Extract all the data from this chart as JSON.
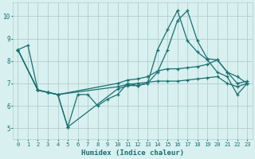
{
  "background_color": "#d8f0f0",
  "grid_color": "#b0cece",
  "line_color": "#1a7070",
  "xlabel": "Humidex (Indice chaleur)",
  "xlim": [
    -0.5,
    23.5
  ],
  "ylim": [
    4.5,
    10.6
  ],
  "yticks": [
    5,
    6,
    7,
    8,
    9,
    10
  ],
  "xticks": [
    0,
    1,
    2,
    3,
    4,
    5,
    6,
    7,
    8,
    9,
    10,
    11,
    12,
    13,
    14,
    15,
    16,
    17,
    18,
    19,
    20,
    21,
    22,
    23
  ],
  "lines": [
    {
      "x": [
        0,
        1,
        2,
        3,
        4,
        5,
        6,
        7,
        8,
        9,
        10,
        11,
        12,
        13,
        14,
        15,
        16,
        17,
        18,
        19,
        20,
        21,
        22,
        23
      ],
      "y": [
        8.5,
        8.7,
        6.7,
        6.6,
        6.5,
        5.05,
        6.5,
        6.5,
        6.0,
        6.3,
        6.5,
        7.0,
        6.9,
        7.0,
        8.5,
        9.4,
        10.25,
        8.9,
        8.4,
        8.05,
        7.5,
        7.3,
        6.5,
        7.0
      ]
    },
    {
      "x": [
        0,
        2,
        3,
        4,
        10,
        11,
        12,
        13,
        14,
        15,
        16,
        17,
        18,
        19,
        20,
        21,
        22,
        23
      ],
      "y": [
        8.5,
        6.7,
        6.6,
        6.5,
        7.0,
        7.15,
        7.2,
        7.3,
        7.55,
        7.65,
        7.65,
        7.7,
        7.75,
        7.85,
        8.05,
        7.5,
        7.0,
        7.1
      ]
    },
    {
      "x": [
        0,
        2,
        3,
        4,
        10,
        11,
        12,
        13,
        14,
        15,
        16,
        17,
        18,
        19,
        20,
        21,
        22,
        23
      ],
      "y": [
        8.5,
        6.7,
        6.6,
        6.5,
        6.85,
        6.95,
        7.0,
        7.05,
        7.1,
        7.1,
        7.1,
        7.15,
        7.2,
        7.25,
        7.3,
        7.0,
        6.85,
        7.0
      ]
    },
    {
      "x": [
        0,
        2,
        3,
        4,
        5,
        10,
        11,
        12,
        13,
        14,
        15,
        16,
        17,
        18,
        19,
        20,
        21,
        22,
        23
      ],
      "y": [
        8.5,
        6.7,
        6.6,
        6.5,
        5.05,
        6.75,
        6.9,
        6.9,
        7.0,
        7.5,
        8.5,
        9.8,
        10.25,
        8.9,
        8.1,
        8.05,
        7.5,
        7.3,
        7.0
      ]
    }
  ]
}
